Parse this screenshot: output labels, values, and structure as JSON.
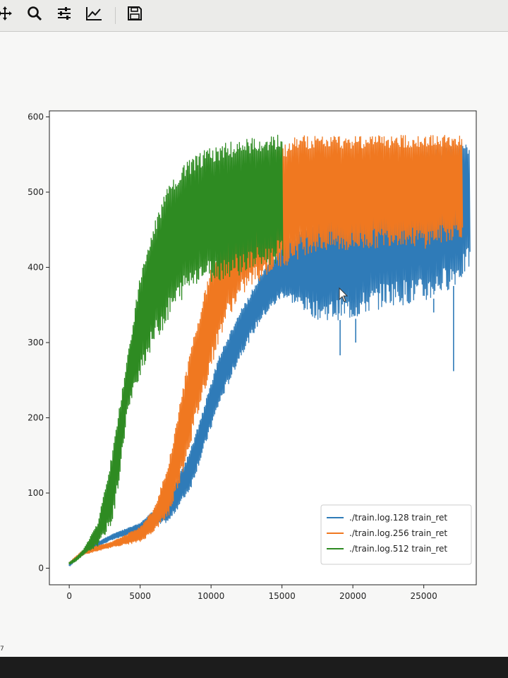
{
  "toolbar": {
    "buttons": [
      {
        "name": "pan-button",
        "icon": "move-arrows-icon"
      },
      {
        "name": "zoom-button",
        "icon": "magnifier-icon"
      },
      {
        "name": "subplots-button",
        "icon": "sliders-icon"
      },
      {
        "name": "edit-axes-button",
        "icon": "chart-line-icon"
      },
      {
        "name": "save-button",
        "icon": "floppy-disk-icon"
      }
    ]
  },
  "status_text": "7",
  "colors": {
    "blue": "#2f7bb8",
    "orange": "#f07820",
    "green": "#2e8b22"
  },
  "chart_data": {
    "type": "line",
    "title": "",
    "xlabel": "",
    "ylabel": "",
    "xlim": [
      -1400,
      28700
    ],
    "ylim": [
      -22,
      608
    ],
    "xticks": [
      0,
      5000,
      10000,
      15000,
      20000,
      25000
    ],
    "xtick_labels": [
      "0",
      "5000",
      "10000",
      "15000",
      "20000",
      "25000"
    ],
    "yticks": [
      0,
      100,
      200,
      300,
      400,
      500,
      600
    ],
    "ytick_labels": [
      "0",
      "100",
      "200",
      "300",
      "400",
      "500",
      "600"
    ],
    "legend_position": "lower-right",
    "series": [
      {
        "name": "./train.log.128 train_ret",
        "color": "#2f7bb8",
        "x_end": 28200,
        "upper": [
          [
            0,
            5
          ],
          [
            1000,
            25
          ],
          [
            3000,
            45
          ],
          [
            5000,
            60
          ],
          [
            7000,
            95
          ],
          [
            8500,
            155
          ],
          [
            9500,
            215
          ],
          [
            10500,
            280
          ],
          [
            12000,
            340
          ],
          [
            13500,
            390
          ],
          [
            15000,
            430
          ],
          [
            17500,
            470
          ],
          [
            20000,
            510
          ],
          [
            22500,
            540
          ],
          [
            25000,
            555
          ],
          [
            27500,
            565
          ],
          [
            28200,
            570
          ]
        ],
        "lower": [
          [
            0,
            3
          ],
          [
            1000,
            20
          ],
          [
            3000,
            38
          ],
          [
            5000,
            48
          ],
          [
            7000,
            62
          ],
          [
            8500,
            105
          ],
          [
            9500,
            160
          ],
          [
            10500,
            215
          ],
          [
            12000,
            280
          ],
          [
            13500,
            330
          ],
          [
            15000,
            360
          ],
          [
            17500,
            330
          ],
          [
            20000,
            330
          ],
          [
            22500,
            350
          ],
          [
            25000,
            350
          ],
          [
            27500,
            380
          ],
          [
            28200,
            400
          ]
        ],
        "dips": [
          [
            19100,
            283
          ],
          [
            27100,
            262
          ],
          [
            20200,
            300
          ],
          [
            25700,
            340
          ],
          [
            23600,
            350
          ]
        ]
      },
      {
        "name": "./train.log.256 train_ret",
        "color": "#f07820",
        "x_end": 27700,
        "upper": [
          [
            0,
            8
          ],
          [
            1000,
            25
          ],
          [
            3000,
            35
          ],
          [
            5000,
            55
          ],
          [
            6000,
            80
          ],
          [
            7000,
            140
          ],
          [
            8000,
            240
          ],
          [
            9000,
            330
          ],
          [
            10000,
            400
          ],
          [
            11000,
            450
          ],
          [
            12500,
            510
          ],
          [
            14000,
            545
          ],
          [
            15000,
            560
          ],
          [
            16000,
            575
          ],
          [
            20000,
            576
          ],
          [
            27700,
            576
          ]
        ],
        "lower": [
          [
            0,
            5
          ],
          [
            1000,
            18
          ],
          [
            3000,
            28
          ],
          [
            5000,
            35
          ],
          [
            6000,
            50
          ],
          [
            7000,
            70
          ],
          [
            8000,
            130
          ],
          [
            9000,
            200
          ],
          [
            10000,
            270
          ],
          [
            11000,
            330
          ],
          [
            12500,
            370
          ],
          [
            14000,
            390
          ],
          [
            15000,
            400
          ],
          [
            17000,
            420
          ],
          [
            20000,
            420
          ],
          [
            23000,
            430
          ],
          [
            25000,
            425
          ],
          [
            27700,
            440
          ]
        ]
      },
      {
        "name": "./train.log.512 train_ret",
        "color": "#2e8b22",
        "x_end": 15000,
        "upper": [
          [
            0,
            8
          ],
          [
            500,
            15
          ],
          [
            1000,
            25
          ],
          [
            2000,
            60
          ],
          [
            3000,
            150
          ],
          [
            4000,
            270
          ],
          [
            5000,
            390
          ],
          [
            6000,
            460
          ],
          [
            7000,
            510
          ],
          [
            8000,
            535
          ],
          [
            9000,
            550
          ],
          [
            10000,
            560
          ],
          [
            11000,
            565
          ],
          [
            12000,
            570
          ],
          [
            13000,
            573
          ],
          [
            14000,
            575
          ],
          [
            15000,
            577
          ]
        ],
        "lower": [
          [
            0,
            5
          ],
          [
            500,
            10
          ],
          [
            1000,
            18
          ],
          [
            2000,
            30
          ],
          [
            3000,
            60
          ],
          [
            3500,
            120
          ],
          [
            4000,
            200
          ],
          [
            5000,
            260
          ],
          [
            6000,
            300
          ],
          [
            7000,
            330
          ],
          [
            8000,
            360
          ],
          [
            9000,
            380
          ],
          [
            10000,
            380
          ],
          [
            12000,
            390
          ],
          [
            14000,
            400
          ],
          [
            15000,
            410
          ]
        ]
      }
    ]
  }
}
